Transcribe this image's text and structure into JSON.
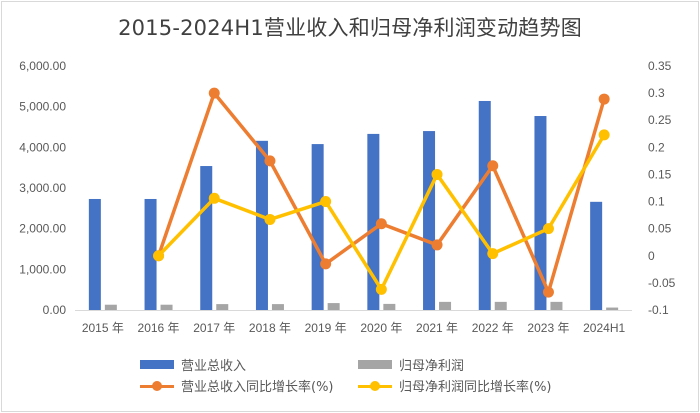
{
  "chart_data": {
    "type": "bar+line",
    "title": "2015-2024H1营业收入和归母净利润变动趋势图",
    "categories": [
      "2015 年",
      "2016 年",
      "2017 年",
      "2018 年",
      "2019 年",
      "2020 年",
      "2021 年",
      "2022 年",
      "2023 年",
      "2024H1"
    ],
    "series": [
      {
        "name": "营业总收入",
        "type": "bar",
        "axis": "left",
        "color": "#4472C4",
        "values": [
          2730,
          2730,
          3540,
          4160,
          4080,
          4330,
          4400,
          5140,
          4770,
          2660
        ]
      },
      {
        "name": "归母净利润",
        "type": "bar",
        "axis": "left",
        "color": "#A5A5A5",
        "values": [
          130,
          130,
          145,
          145,
          170,
          150,
          200,
          200,
          200,
          60
        ]
      },
      {
        "name": "营业总收入同比增长率(%)",
        "type": "line",
        "axis": "right",
        "color": "#ED7D31",
        "values": [
          null,
          0.0,
          0.3,
          0.175,
          -0.015,
          0.059,
          0.02,
          0.166,
          -0.067,
          0.289
        ]
      },
      {
        "name": "归母净利润同比增长率(%)",
        "type": "line",
        "axis": "right",
        "color": "#FFC000",
        "values": [
          null,
          0.0,
          0.106,
          0.067,
          0.1,
          -0.062,
          0.15,
          0.004,
          0.05,
          0.223
        ]
      }
    ],
    "left_axis": {
      "ylim": [
        0,
        6000
      ],
      "ticks": [
        "0.00",
        "1,000.00",
        "2,000.00",
        "3,000.00",
        "4,000.00",
        "5,000.00",
        "6,000.00"
      ]
    },
    "right_axis": {
      "ylim": [
        -0.1,
        0.35
      ],
      "ticks": [
        "-0.1",
        "-0.05",
        "0",
        "0.05",
        "0.1",
        "0.15",
        "0.2",
        "0.25",
        "0.3",
        "0.35"
      ]
    },
    "xlabel": "",
    "ylabel": "",
    "grid": false,
    "legend_position": "bottom"
  },
  "legend": {
    "revenue": "营业总收入",
    "profit": "归母净利润",
    "revenue_growth": "营业总收入同比增长率(%)",
    "profit_growth": "归母净利润同比增长率(%)"
  }
}
